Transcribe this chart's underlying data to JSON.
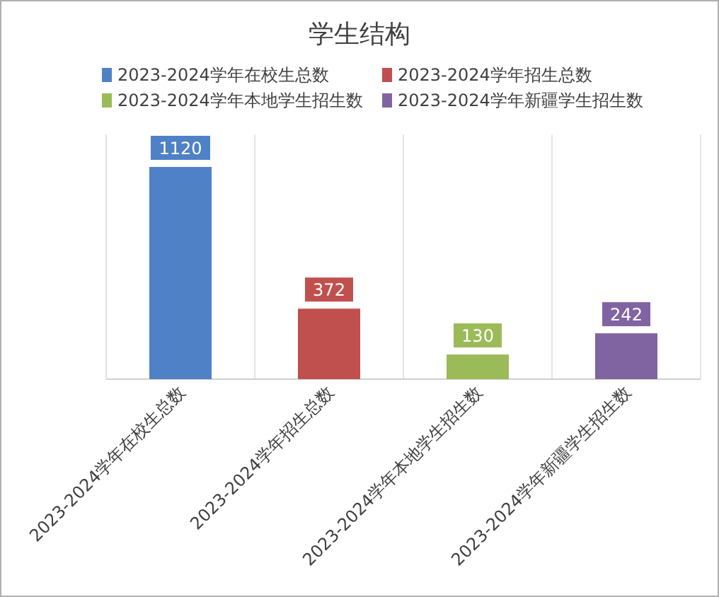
{
  "chart_data": {
    "type": "bar",
    "title": "学生结构",
    "categories": [
      "2023-2024学年在校生总数",
      "2023-2024学年招生总数",
      "2023-2024学年本地学生招生数",
      "2023-2024学年新疆学生招生数"
    ],
    "series": [
      {
        "name": "2023-2024学年在校生总数",
        "color": "#4f81c7",
        "values": [
          1120,
          null,
          null,
          null
        ]
      },
      {
        "name": "2023-2024学年招生总数",
        "color": "#c0504d",
        "values": [
          null,
          372,
          null,
          null
        ]
      },
      {
        "name": "2023-2024学年本地学生招生数",
        "color": "#9bbb59",
        "values": [
          null,
          null,
          130,
          null
        ]
      },
      {
        "name": "2023-2024学年新疆学生招生数",
        "color": "#8064a2",
        "values": [
          null,
          null,
          null,
          242
        ]
      }
    ],
    "data_labels": true,
    "legend": "top",
    "grid": "x"
  }
}
